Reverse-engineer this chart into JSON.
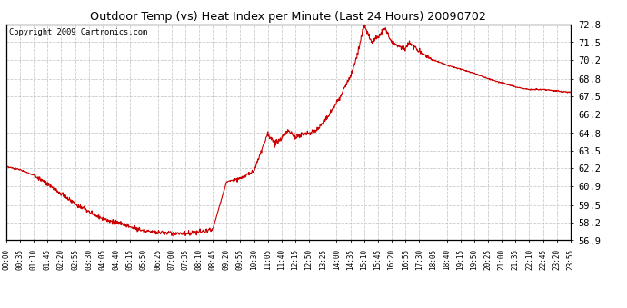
{
  "title": "Outdoor Temp (vs) Heat Index per Minute (Last 24 Hours) 20090702",
  "copyright": "Copyright 2009 Cartronics.com",
  "line_color": "#cc0000",
  "background_color": "#ffffff",
  "grid_color": "#bbbbbb",
  "ylim": [
    56.9,
    72.8
  ],
  "yticks": [
    56.9,
    58.2,
    59.5,
    60.9,
    62.2,
    63.5,
    64.8,
    66.2,
    67.5,
    68.8,
    70.2,
    71.5,
    72.8
  ],
  "xtick_labels": [
    "00:00",
    "00:35",
    "01:10",
    "01:45",
    "02:20",
    "02:55",
    "03:30",
    "04:05",
    "04:40",
    "05:15",
    "05:50",
    "06:25",
    "07:00",
    "07:35",
    "08:10",
    "08:45",
    "09:20",
    "09:55",
    "10:30",
    "11:05",
    "11:40",
    "12:15",
    "12:50",
    "13:25",
    "14:00",
    "14:35",
    "15:10",
    "15:45",
    "16:20",
    "16:55",
    "17:30",
    "18:05",
    "18:40",
    "19:15",
    "19:50",
    "20:25",
    "21:00",
    "21:35",
    "22:10",
    "22:45",
    "23:20",
    "23:55"
  ],
  "key_x": [
    0,
    1,
    2,
    3,
    4,
    5,
    6,
    7,
    8,
    9,
    10,
    11,
    12,
    13,
    14,
    15,
    16,
    17,
    18,
    19,
    19.5,
    20,
    20.5,
    21,
    21.5,
    22,
    22.5,
    23,
    23.5,
    24,
    24.5,
    25,
    25.5,
    26,
    26.5,
    27,
    27.5,
    28,
    28.5,
    29,
    29.3,
    29.5,
    29.8,
    30,
    30.5,
    31,
    31.5,
    32,
    33,
    34,
    35,
    36,
    37,
    38,
    39,
    40,
    41
  ],
  "key_y": [
    62.3,
    62.1,
    61.7,
    61.0,
    60.3,
    59.6,
    59.0,
    58.5,
    58.2,
    57.9,
    57.6,
    57.5,
    57.4,
    57.4,
    57.5,
    57.7,
    61.2,
    61.5,
    62.0,
    64.8,
    64.0,
    64.4,
    65.0,
    64.5,
    64.7,
    64.8,
    65.0,
    65.5,
    66.2,
    67.0,
    68.0,
    69.0,
    70.5,
    72.8,
    71.5,
    71.8,
    72.5,
    71.5,
    71.2,
    71.0,
    71.5,
    71.2,
    71.0,
    70.8,
    70.5,
    70.2,
    70.0,
    69.8,
    69.5,
    69.2,
    68.8,
    68.5,
    68.2,
    68.0,
    68.0,
    67.9,
    67.8
  ]
}
